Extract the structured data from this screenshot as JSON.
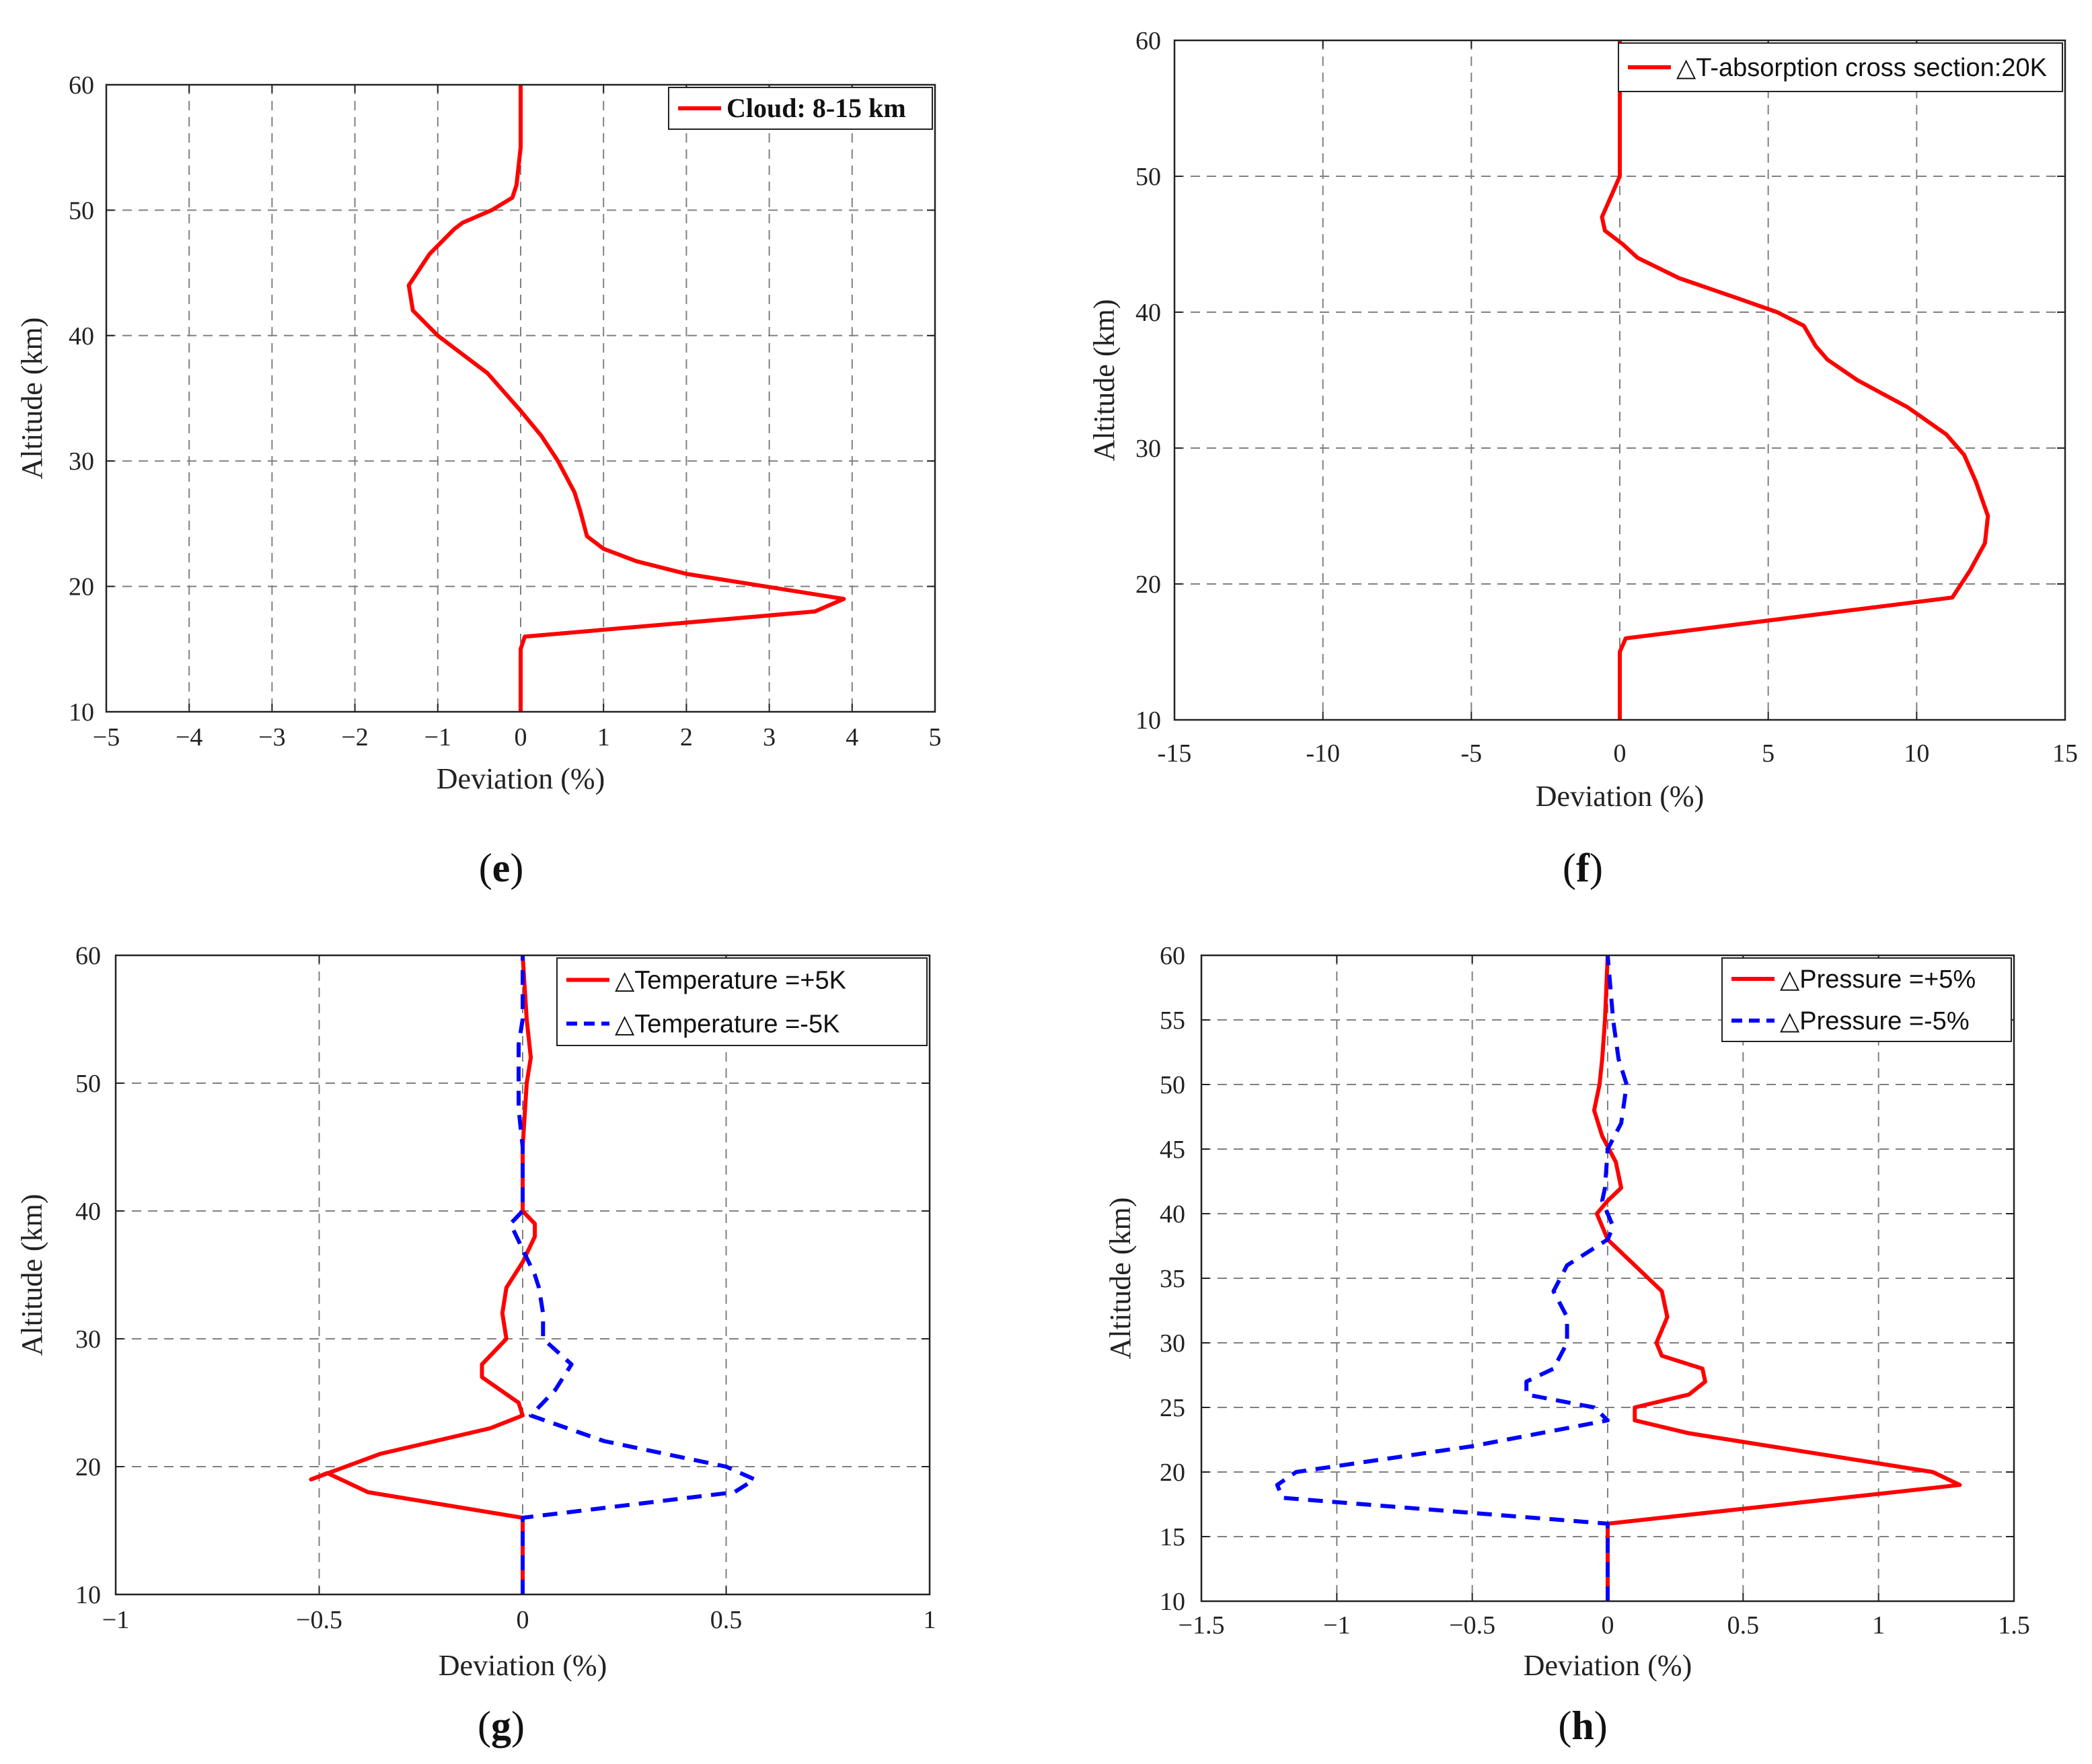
{
  "chart_data": [
    {
      "panel": "e",
      "type": "line",
      "xlabel": "Deviation (%)",
      "ylabel": "Altitude (km)",
      "xlim": [
        -5,
        5
      ],
      "ylim": [
        10,
        60
      ],
      "xticks": [
        -5,
        -4,
        -3,
        -2,
        -1,
        0,
        1,
        2,
        3,
        4,
        5
      ],
      "yticks": [
        10,
        20,
        30,
        40,
        50,
        60
      ],
      "xtick_labels": [
        "−5",
        "−4",
        "−3",
        "−2",
        "−1",
        "0",
        "1",
        "2",
        "3",
        "4",
        "5"
      ],
      "ytick_labels": [
        "10",
        "20",
        "30",
        "40",
        "50",
        "60"
      ],
      "grid": true,
      "legend_position": "top-right",
      "legend_style": "serif",
      "series": [
        {
          "name": "Cloud: 8-15 km",
          "color": "#ff0000",
          "dash": "solid",
          "points": [
            [
              0,
              10
            ],
            [
              0,
              15
            ],
            [
              0.05,
              16
            ],
            [
              3.55,
              18
            ],
            [
              3.9,
              19
            ],
            [
              2,
              21
            ],
            [
              1.4,
              22
            ],
            [
              1,
              23
            ],
            [
              0.8,
              24
            ],
            [
              0.72,
              26
            ],
            [
              0.65,
              27.5
            ],
            [
              0.45,
              30
            ],
            [
              0.25,
              32
            ],
            [
              0,
              34
            ],
            [
              -0.4,
              37
            ],
            [
              -1,
              40
            ],
            [
              -1.3,
              42
            ],
            [
              -1.35,
              44
            ],
            [
              -1.1,
              46.5
            ],
            [
              -0.8,
              48.5
            ],
            [
              -0.7,
              49
            ],
            [
              -0.35,
              50
            ],
            [
              -0.1,
              51
            ],
            [
              -0.05,
              52
            ],
            [
              0,
              55
            ],
            [
              0,
              60
            ]
          ]
        }
      ],
      "panel_label": "e"
    },
    {
      "panel": "f",
      "type": "line",
      "xlabel": "Deviation (%)",
      "ylabel": "Altitude (km)",
      "xlim": [
        -15,
        15
      ],
      "ylim": [
        10,
        60
      ],
      "xticks": [
        -15,
        -10,
        -5,
        0,
        5,
        10,
        15
      ],
      "yticks": [
        10,
        20,
        30,
        40,
        50,
        60
      ],
      "xtick_labels": [
        "-15",
        "-10",
        "-5",
        "0",
        "5",
        "10",
        "15"
      ],
      "ytick_labels": [
        "10",
        "20",
        "30",
        "40",
        "50",
        "60"
      ],
      "grid": true,
      "legend_position": "top-right",
      "legend_style": "sans",
      "series": [
        {
          "name": "△T-absorption cross section:20K",
          "color": "#ff0000",
          "dash": "solid",
          "points": [
            [
              0,
              10
            ],
            [
              0,
              15
            ],
            [
              0.2,
              16
            ],
            [
              11.2,
              19
            ],
            [
              11.8,
              21
            ],
            [
              12.3,
              23
            ],
            [
              12.4,
              25
            ],
            [
              12,
              27.5
            ],
            [
              11.6,
              29.5
            ],
            [
              11,
              31
            ],
            [
              9.7,
              33
            ],
            [
              8,
              35
            ],
            [
              7,
              36.5
            ],
            [
              6.6,
              37.5
            ],
            [
              6.2,
              39
            ],
            [
              5.3,
              40
            ],
            [
              4,
              41
            ],
            [
              2,
              42.5
            ],
            [
              0.6,
              44
            ],
            [
              0.1,
              45
            ],
            [
              -0.5,
              46
            ],
            [
              -0.6,
              47
            ],
            [
              -0.3,
              48.5
            ],
            [
              0,
              50
            ],
            [
              0,
              55
            ],
            [
              0,
              60
            ]
          ]
        }
      ],
      "panel_label": "f"
    },
    {
      "panel": "g",
      "type": "line",
      "xlabel": "Deviation (%)",
      "ylabel": "Altitude (km)",
      "xlim": [
        -1,
        1
      ],
      "ylim": [
        10,
        60
      ],
      "xticks": [
        -1,
        -0.5,
        0,
        0.5,
        1
      ],
      "yticks": [
        10,
        20,
        30,
        40,
        50,
        60
      ],
      "xtick_labels": [
        "−1",
        "−0.5",
        "0",
        "0.5",
        "1"
      ],
      "ytick_labels": [
        "10",
        "20",
        "30",
        "40",
        "50",
        "60"
      ],
      "grid": true,
      "legend_position": "top-right",
      "legend_style": "sans",
      "series": [
        {
          "name": "△Temperature =+5K",
          "color": "#ff0000",
          "dash": "solid",
          "points": [
            [
              0,
              10
            ],
            [
              0,
              16
            ],
            [
              -0.38,
              18
            ],
            [
              -0.48,
              19.5
            ],
            [
              -0.52,
              19
            ],
            [
              -0.35,
              21
            ],
            [
              -0.08,
              23
            ],
            [
              0,
              24
            ],
            [
              -0.01,
              25
            ],
            [
              -0.1,
              27
            ],
            [
              -0.1,
              28
            ],
            [
              -0.04,
              30
            ],
            [
              -0.05,
              32
            ],
            [
              -0.04,
              34
            ],
            [
              0,
              36
            ],
            [
              0.03,
              38
            ],
            [
              0.03,
              39
            ],
            [
              0,
              40
            ],
            [
              0,
              45
            ],
            [
              0.01,
              50
            ],
            [
              0.02,
              52
            ],
            [
              0.01,
              55
            ],
            [
              0,
              60
            ]
          ]
        },
        {
          "name": "△Temperature =-5K",
          "color": "#0000ff",
          "dash": "dashed",
          "points": [
            [
              0,
              10
            ],
            [
              0,
              16
            ],
            [
              0.52,
              18
            ],
            [
              0.57,
              19
            ],
            [
              0.5,
              20
            ],
            [
              0.2,
              22
            ],
            [
              0.02,
              24
            ],
            [
              0.08,
              26
            ],
            [
              0.12,
              28
            ],
            [
              0.05,
              30
            ],
            [
              0.05,
              32
            ],
            [
              0.04,
              34
            ],
            [
              0.03,
              35
            ],
            [
              0,
              37
            ],
            [
              -0.03,
              39
            ],
            [
              0,
              40
            ],
            [
              0,
              45
            ],
            [
              -0.01,
              48
            ],
            [
              -0.01,
              50
            ],
            [
              -0.01,
              53
            ],
            [
              0,
              55
            ],
            [
              0,
              60
            ]
          ]
        }
      ],
      "panel_label": "g"
    },
    {
      "panel": "h",
      "type": "line",
      "xlabel": "Deviation (%)",
      "ylabel": "Altitude (km)",
      "xlim": [
        -1.5,
        1.5
      ],
      "ylim": [
        10,
        60
      ],
      "xticks": [
        -1.5,
        -1,
        -0.5,
        0,
        0.5,
        1,
        1.5
      ],
      "yticks": [
        10,
        15,
        20,
        25,
        30,
        35,
        40,
        45,
        50,
        55,
        60
      ],
      "xtick_labels": [
        "−1.5",
        "−1",
        "−0.5",
        "0",
        "0.5",
        "1",
        "1.5"
      ],
      "ytick_labels": [
        "10",
        "15",
        "20",
        "25",
        "30",
        "35",
        "40",
        "45",
        "50",
        "55",
        "60"
      ],
      "grid": true,
      "legend_position": "top-right",
      "legend_style": "sans",
      "series": [
        {
          "name": "△Pressure =+5%",
          "color": "#ff0000",
          "dash": "solid",
          "points": [
            [
              0,
              10
            ],
            [
              0,
              16
            ],
            [
              1.3,
              19
            ],
            [
              1.2,
              20
            ],
            [
              0.9,
              21
            ],
            [
              0.6,
              22
            ],
            [
              0.3,
              23
            ],
            [
              0.1,
              24
            ],
            [
              0.1,
              25
            ],
            [
              0.3,
              26
            ],
            [
              0.36,
              27
            ],
            [
              0.35,
              28
            ],
            [
              0.2,
              29
            ],
            [
              0.18,
              30
            ],
            [
              0.22,
              32
            ],
            [
              0.2,
              34
            ],
            [
              0.1,
              36
            ],
            [
              0.05,
              37
            ],
            [
              0,
              38
            ],
            [
              -0.04,
              40
            ],
            [
              0,
              41
            ],
            [
              0.05,
              42
            ],
            [
              0.03,
              44
            ],
            [
              -0.02,
              46
            ],
            [
              -0.05,
              48
            ],
            [
              -0.03,
              50
            ],
            [
              -0.02,
              52
            ],
            [
              -0.01,
              55
            ],
            [
              0,
              60
            ]
          ]
        },
        {
          "name": "△Pressure =-5%",
          "color": "#0000ff",
          "dash": "dashed",
          "points": [
            [
              0,
              10
            ],
            [
              0,
              16
            ],
            [
              -1.2,
              18
            ],
            [
              -1.22,
              19
            ],
            [
              -1.15,
              20
            ],
            [
              -0.5,
              22
            ],
            [
              0,
              24
            ],
            [
              -0.05,
              25
            ],
            [
              -0.3,
              26
            ],
            [
              -0.3,
              27
            ],
            [
              -0.2,
              28
            ],
            [
              -0.15,
              30
            ],
            [
              -0.15,
              32
            ],
            [
              -0.2,
              34
            ],
            [
              -0.15,
              36
            ],
            [
              0,
              38
            ],
            [
              0.02,
              39
            ],
            [
              0,
              40
            ],
            [
              -0.02,
              41
            ],
            [
              -0.01,
              42
            ],
            [
              0,
              45
            ],
            [
              0.05,
              47
            ],
            [
              0.07,
              50
            ],
            [
              0.04,
              52
            ],
            [
              0.02,
              55
            ],
            [
              0,
              60
            ]
          ]
        }
      ],
      "panel_label": "h"
    }
  ]
}
